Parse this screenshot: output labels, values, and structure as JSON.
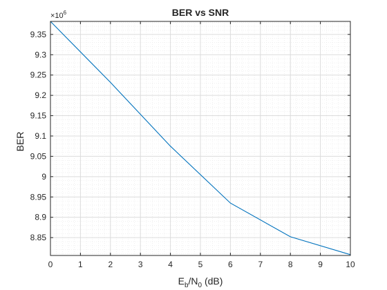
{
  "figure_background": "#ffffff",
  "axes_color": "#262626",
  "chart_data": {
    "type": "line",
    "title": "BER vs SNR",
    "xlabel": {
      "base": "E",
      "sub1": "b",
      "mid": "/N",
      "sub2": "0",
      "suffix": " (dB)"
    },
    "ylabel": "BER",
    "exponent_label": {
      "base": "×10",
      "power": "6"
    },
    "xlim": [
      0,
      10
    ],
    "ylim": [
      8.806,
      9.382
    ],
    "xticks": [
      0,
      1,
      2,
      3,
      4,
      5,
      6,
      7,
      8,
      9,
      10
    ],
    "xtick_labels": [
      "0",
      "1",
      "2",
      "3",
      "4",
      "5",
      "6",
      "7",
      "8",
      "9",
      "10"
    ],
    "yticks": [
      8.85,
      8.9,
      8.95,
      9.0,
      9.05,
      9.1,
      9.15,
      9.2,
      9.25,
      9.3,
      9.35
    ],
    "ytick_labels": [
      "8.85",
      "8.9",
      "8.95",
      "9",
      "9.05",
      "9.1",
      "9.15",
      "9.2",
      "9.25",
      "9.3",
      "9.35"
    ],
    "grid": true,
    "minor_grid": true,
    "series": [
      {
        "color": "#0072bd",
        "x": [
          0,
          2,
          4,
          6,
          8,
          10
        ],
        "y": [
          9.382,
          9.232,
          9.075,
          8.935,
          8.852,
          8.808
        ]
      }
    ]
  }
}
